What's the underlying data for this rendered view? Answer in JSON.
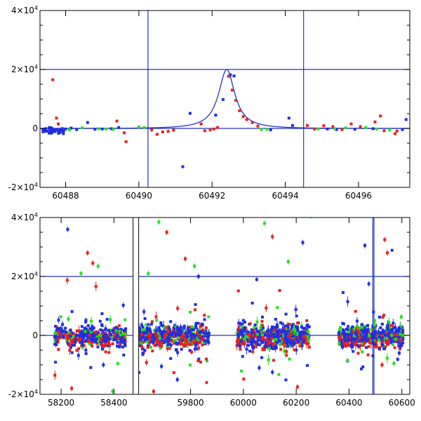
{
  "chart_data": [
    {
      "type": "scatter",
      "title": "",
      "xlabel": "",
      "ylabel": "",
      "xlim": [
        60487.3,
        60497.4
      ],
      "ylim": [
        -20000,
        40000
      ],
      "x_ticks": [
        60488,
        60490,
        60492,
        60494,
        60496
      ],
      "y_ticks": [
        {
          "value": -20000,
          "mantissa": "-2×10",
          "exp": "4"
        },
        {
          "value": 0,
          "mantissa": "0",
          "exp": ""
        },
        {
          "value": 20000,
          "mantissa": "2×10",
          "exp": "4"
        },
        {
          "value": 40000,
          "mantissa": "4×10",
          "exp": "4"
        }
      ],
      "colors": {
        "blue": "#1f2fe0",
        "red": "#e8211c",
        "green": "#22e01f",
        "line": "#2233cc"
      },
      "hlines": [
        20000,
        0
      ],
      "vlines": [
        60490.25,
        60494.5
      ],
      "model_curve": {
        "peak_x": 60492.4,
        "peak_y": 20000,
        "width": 0.34,
        "baseline": 0
      },
      "series": [
        {
          "color": "blue",
          "points": [
            [
              60487.4,
              -300
            ],
            [
              60487.55,
              200
            ],
            [
              60487.7,
              -600
            ],
            [
              60488.0,
              -200
            ],
            [
              60488.15,
              100
            ],
            [
              60488.3,
              -400
            ],
            [
              60488.6,
              2000
            ],
            [
              60488.8,
              -300
            ],
            [
              60489.0,
              -200
            ],
            [
              60489.25,
              -100
            ],
            [
              60489.45,
              300
            ],
            [
              60491.2,
              -13000
            ],
            [
              60491.4,
              5100
            ],
            [
              60492.1,
              4500
            ],
            [
              60492.3,
              9800
            ],
            [
              60492.5,
              18200
            ],
            [
              60492.6,
              17800
            ],
            [
              60493.6,
              -500
            ],
            [
              60494.1,
              3500
            ],
            [
              60494.2,
              1000
            ],
            [
              60495.15,
              -200
            ],
            [
              60495.4,
              -400
            ],
            [
              60495.9,
              -300
            ],
            [
              60496.4,
              -100
            ],
            [
              60497.3,
              3000
            ],
            [
              60497.2,
              -400
            ]
          ]
        },
        {
          "color": "red",
          "points": [
            [
              60487.65,
              16500
            ],
            [
              60487.75,
              3500
            ],
            [
              60487.8,
              1500
            ],
            [
              60489.4,
              2500
            ],
            [
              60489.6,
              -1500
            ],
            [
              60489.65,
              -4500
            ],
            [
              60490.35,
              -500
            ],
            [
              60490.5,
              -2000
            ],
            [
              60490.65,
              -1200
            ],
            [
              60490.8,
              -1000
            ],
            [
              60490.95,
              -600
            ],
            [
              60491.7,
              1500
            ],
            [
              60491.8,
              -800
            ],
            [
              60491.95,
              -500
            ],
            [
              60492.05,
              -200
            ],
            [
              60492.15,
              300
            ],
            [
              60492.45,
              17700
            ],
            [
              60492.55,
              13000
            ],
            [
              60492.65,
              9500
            ],
            [
              60492.75,
              6000
            ],
            [
              60492.85,
              4000
            ],
            [
              60492.95,
              3000
            ],
            [
              60493.1,
              2000
            ],
            [
              60493.25,
              800
            ],
            [
              60494.6,
              1000
            ],
            [
              60494.8,
              -200
            ],
            [
              60495.05,
              900
            ],
            [
              60495.3,
              600
            ],
            [
              60495.55,
              -400
            ],
            [
              60495.8,
              1500
            ],
            [
              60496.05,
              600
            ],
            [
              60496.45,
              2200
            ],
            [
              60496.6,
              4200
            ],
            [
              60496.7,
              -800
            ],
            [
              60497.0,
              -1800
            ],
            [
              60497.05,
              -900
            ]
          ]
        },
        {
          "color": "green",
          "points": [
            [
              60487.9,
              -400
            ],
            [
              60488.1,
              -500
            ],
            [
              60488.45,
              200
            ],
            [
              60488.9,
              -100
            ],
            [
              60489.1,
              -200
            ],
            [
              60489.3,
              -300
            ],
            [
              60490.0,
              500
            ],
            [
              60490.15,
              300
            ],
            [
              60493.35,
              -400
            ],
            [
              60493.5,
              -300
            ],
            [
              60494.9,
              -200
            ],
            [
              60495.35,
              -100
            ],
            [
              60495.65,
              200
            ],
            [
              60496.2,
              300
            ],
            [
              60496.5,
              -200
            ],
            [
              60496.85,
              -500
            ]
          ]
        }
      ]
    },
    {
      "type": "scatter",
      "title": "",
      "xlabel": "",
      "ylabel": "",
      "xlim": [
        58120,
        60630
      ],
      "ylim": [
        -20000,
        40000
      ],
      "x_ticks": [
        58200,
        58400,
        59800,
        60000,
        60200,
        60400,
        60600
      ],
      "break": {
        "gap_from": 58470,
        "gap_to": 59580,
        "display_at": 58475
      },
      "y_ticks": [
        {
          "value": -20000,
          "mantissa": "-2×10",
          "exp": "4"
        },
        {
          "value": 0,
          "mantissa": "0",
          "exp": ""
        },
        {
          "value": 20000,
          "mantissa": "2×10",
          "exp": "4"
        },
        {
          "value": 40000,
          "mantissa": "4×10",
          "exp": "4"
        }
      ],
      "colors": {
        "blue": "#1f2fe0",
        "red": "#e8211c",
        "green": "#22e01f",
        "line": "#2233cc"
      },
      "hlines": [
        20000,
        0
      ],
      "vlines": [
        60490.25,
        60494.5
      ],
      "seasons": [
        {
          "x_from": 58175,
          "x_to": 58445,
          "n": 420,
          "seed": 11
        },
        {
          "x_from": 59600,
          "x_to": 59870,
          "n": 520,
          "seed": 23
        },
        {
          "x_from": 59975,
          "x_to": 60250,
          "n": 560,
          "seed": 37
        },
        {
          "x_from": 60360,
          "x_to": 60605,
          "n": 480,
          "seed": 51
        }
      ],
      "outliers": [
        {
          "color": "blue",
          "x": 58225,
          "y": 36000
        },
        {
          "color": "red",
          "x": 58300,
          "y": 28000
        },
        {
          "color": "red",
          "x": 58320,
          "y": 24500
        },
        {
          "color": "green",
          "x": 58275,
          "y": 21000
        },
        {
          "color": "green",
          "x": 58340,
          "y": 23500
        },
        {
          "color": "red",
          "x": 58240,
          "y": -18000
        },
        {
          "color": "blue",
          "x": 58360,
          "y": -10000
        },
        {
          "color": "green",
          "x": 58395,
          "y": -19000
        },
        {
          "color": "green",
          "x": 59640,
          "y": 21000
        },
        {
          "color": "green",
          "x": 59680,
          "y": 38500
        },
        {
          "color": "red",
          "x": 59710,
          "y": 35000
        },
        {
          "color": "red",
          "x": 59780,
          "y": 26000
        },
        {
          "color": "green",
          "x": 59815,
          "y": 23500
        },
        {
          "color": "blue",
          "x": 59830,
          "y": 20000
        },
        {
          "color": "blue",
          "x": 59690,
          "y": -10500
        },
        {
          "color": "blue",
          "x": 59750,
          "y": -15000
        },
        {
          "color": "red",
          "x": 59660,
          "y": -19000
        },
        {
          "color": "green",
          "x": 60080,
          "y": 38000
        },
        {
          "color": "red",
          "x": 60110,
          "y": 33500
        },
        {
          "color": "green",
          "x": 60170,
          "y": 25000
        },
        {
          "color": "blue",
          "x": 60225,
          "y": 31500
        },
        {
          "color": "green",
          "x": 60255,
          "y": 40500
        },
        {
          "color": "blue",
          "x": 60060,
          "y": -11000
        },
        {
          "color": "blue",
          "x": 60110,
          "y": -12500
        },
        {
          "color": "red",
          "x": 60205,
          "y": -17500
        },
        {
          "color": "blue",
          "x": 60460,
          "y": 30500
        },
        {
          "color": "red",
          "x": 60535,
          "y": 32500
        },
        {
          "color": "red",
          "x": 60545,
          "y": 28000
        },
        {
          "color": "blue",
          "x": 60475,
          "y": 17500
        },
        {
          "color": "red",
          "x": 60525,
          "y": -10000
        },
        {
          "color": "green",
          "x": 60570,
          "y": -9500
        },
        {
          "color": "blue",
          "x": 60590,
          "y": -6000
        },
        {
          "color": "green",
          "x": 60395,
          "y": -8500
        }
      ]
    }
  ]
}
